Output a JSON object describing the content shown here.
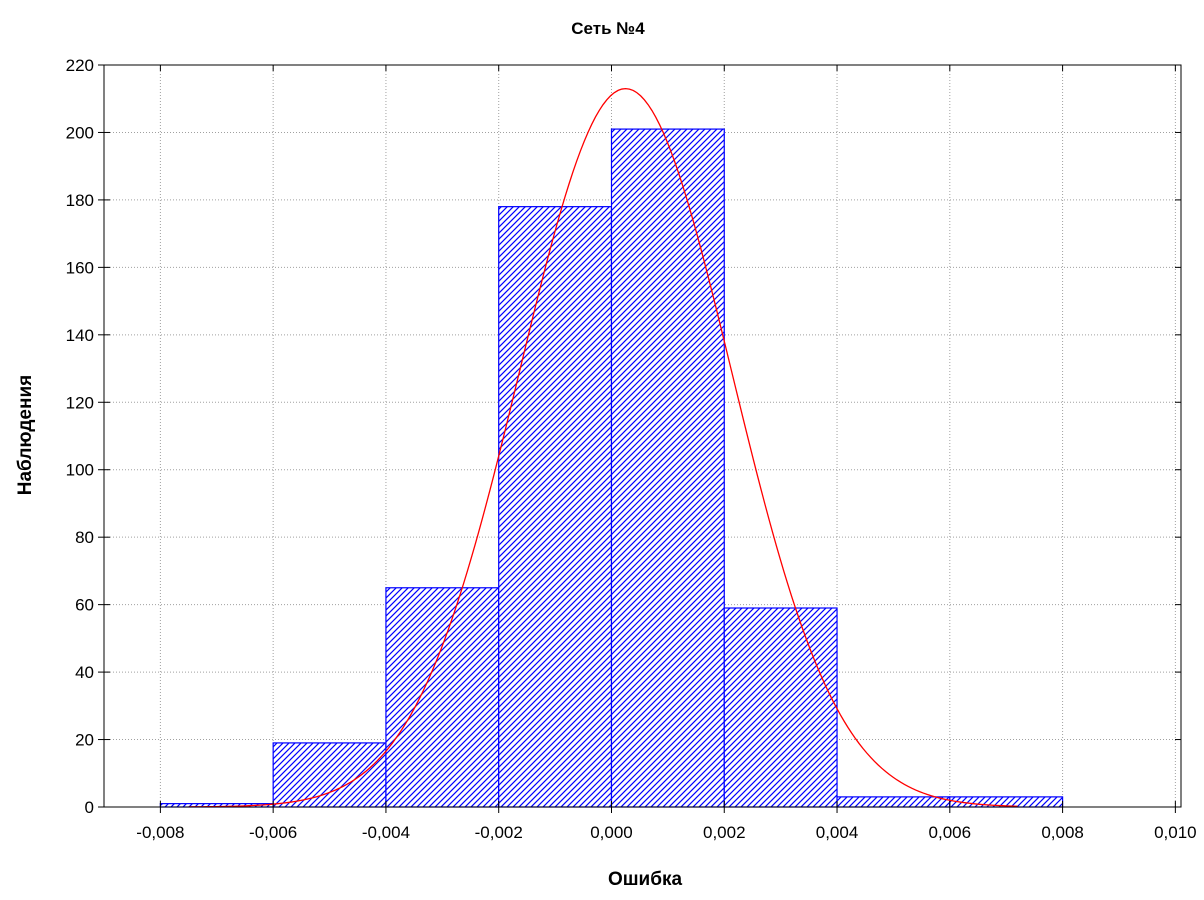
{
  "chart_data": {
    "type": "bar",
    "title": "Сеть №4",
    "xlabel": "Ошибка",
    "ylabel": "Наблюдения",
    "xlim": [
      -0.009,
      0.0101
    ],
    "ylim": [
      0,
      220
    ],
    "x_ticks": [
      -0.008,
      -0.006,
      -0.004,
      -0.002,
      0.0,
      0.002,
      0.004,
      0.006,
      0.008,
      0.01
    ],
    "x_tick_labels": [
      "-0,008",
      "-0,006",
      "-0,004",
      "-0,002",
      "0,000",
      "0,002",
      "0,004",
      "0,006",
      "0,008",
      "0,010"
    ],
    "y_ticks": [
      0,
      20,
      40,
      60,
      80,
      100,
      120,
      140,
      160,
      180,
      200,
      220
    ],
    "y_tick_labels": [
      "0",
      "20",
      "40",
      "60",
      "80",
      "100",
      "120",
      "140",
      "160",
      "180",
      "200",
      "220"
    ],
    "grid": true,
    "bins": [
      {
        "x0": -0.008,
        "x1": -0.006,
        "count": 1
      },
      {
        "x0": -0.006,
        "x1": -0.004,
        "count": 19
      },
      {
        "x0": -0.004,
        "x1": -0.002,
        "count": 65
      },
      {
        "x0": -0.002,
        "x1": 0.0,
        "count": 178
      },
      {
        "x0": 0.0,
        "x1": 0.002,
        "count": 201
      },
      {
        "x0": 0.002,
        "x1": 0.004,
        "count": 59
      },
      {
        "x0": 0.004,
        "x1": 0.006,
        "count": 3
      },
      {
        "x0": 0.006,
        "x1": 0.008,
        "count": 3
      }
    ],
    "fit_curve": {
      "kind": "normal",
      "mean": 0.00025,
      "std": 0.00188,
      "peak": 213,
      "x_range": [
        -0.0075,
        0.0072
      ]
    },
    "colors": {
      "bar_stroke": "#0000ff",
      "bar_hatch": "#0000ff",
      "curve": "#ff0000",
      "grid": "#a0a0a0",
      "axes": "#000000"
    }
  }
}
